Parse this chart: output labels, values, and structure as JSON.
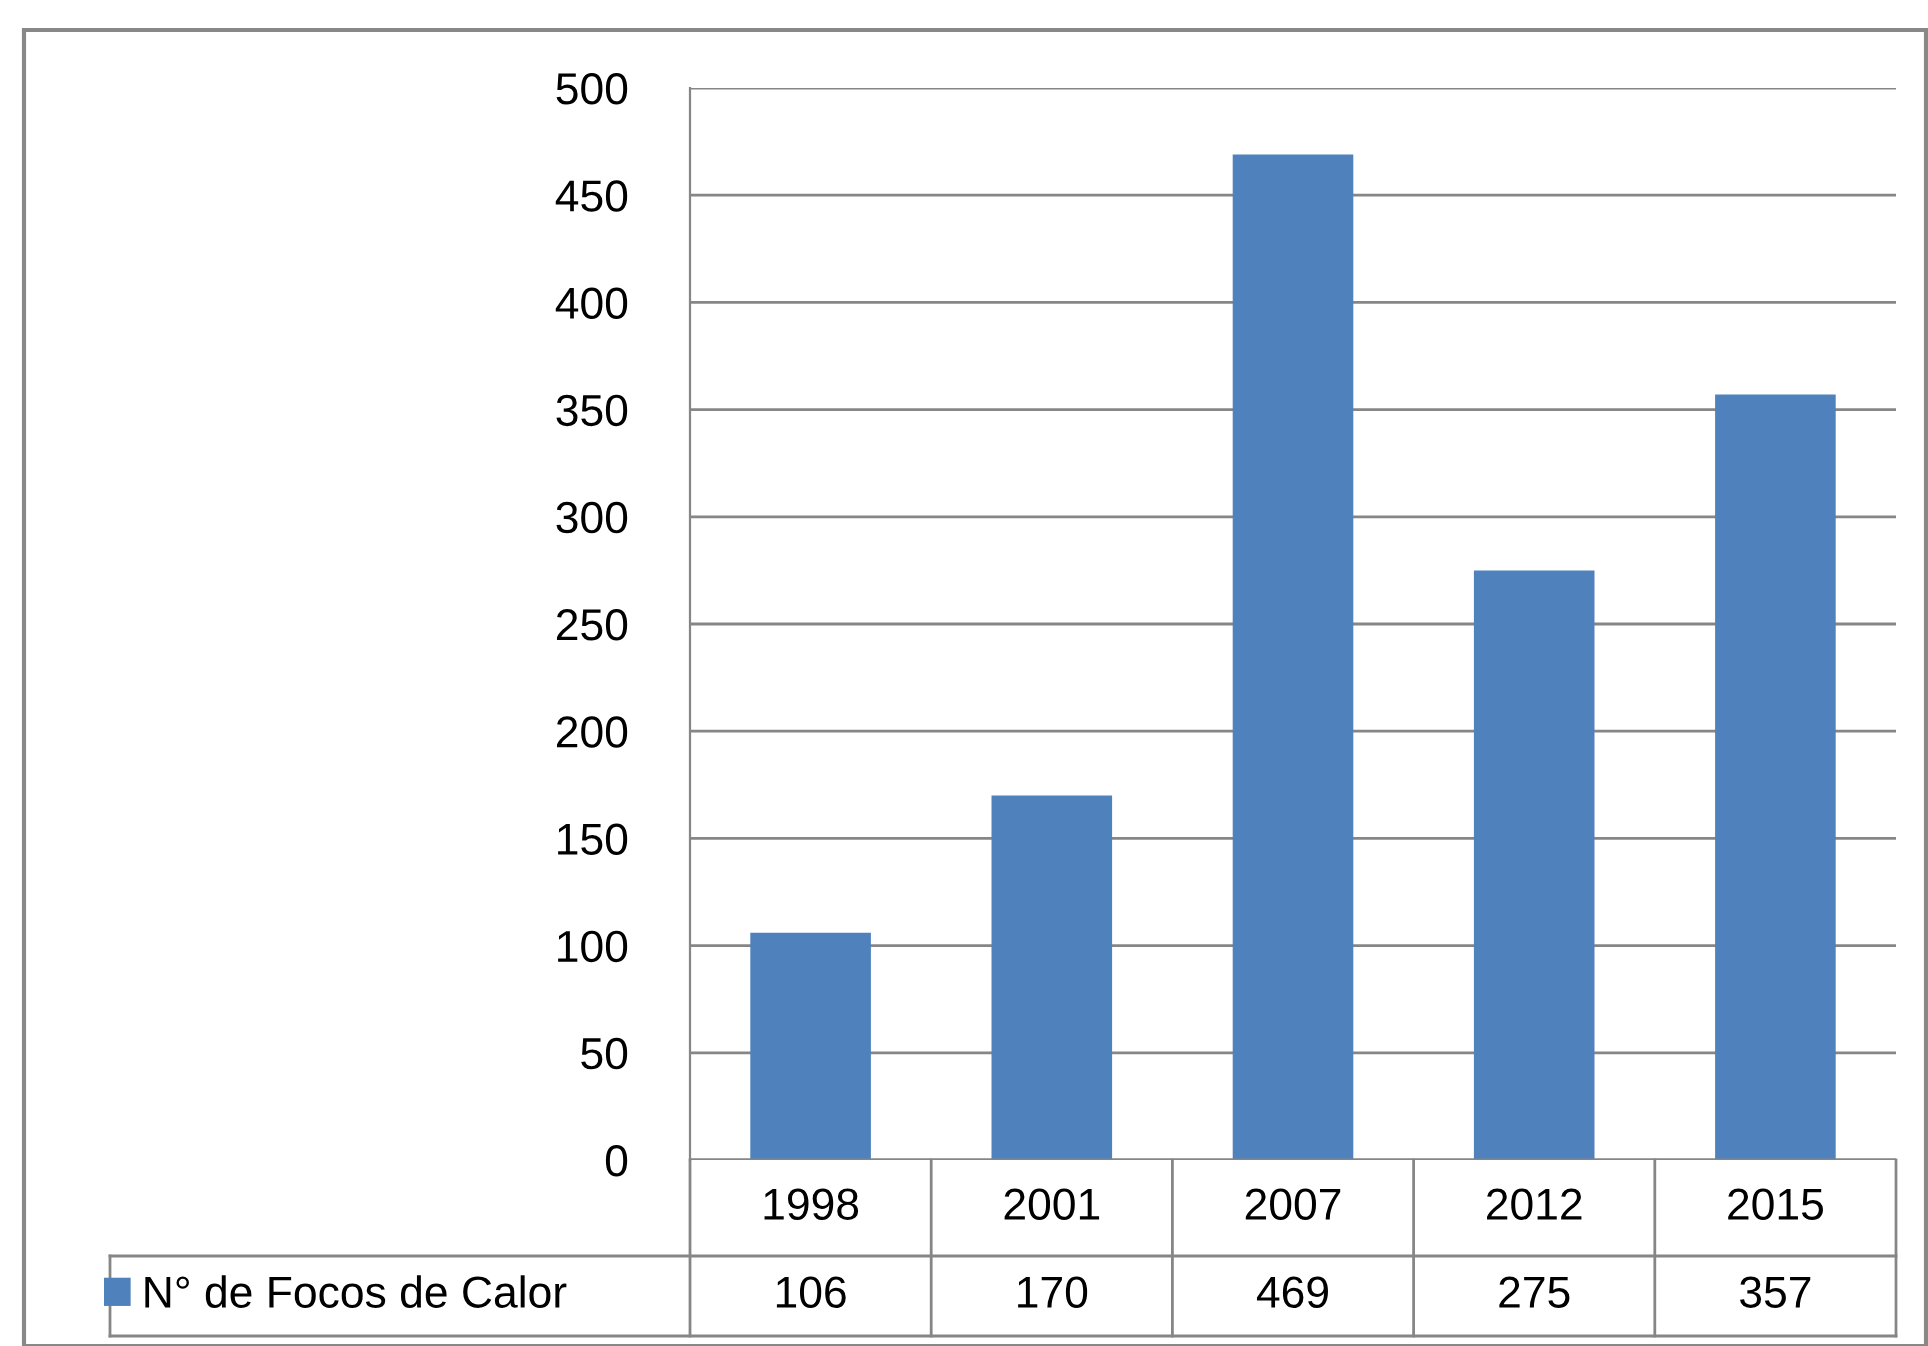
{
  "chart_data": {
    "type": "bar",
    "categories": [
      "1998",
      "2001",
      "2007",
      "2012",
      "2015"
    ],
    "series": [
      {
        "name": "N° de Focos de Calor",
        "color": "#4f81bd",
        "values": [
          106,
          170,
          469,
          275,
          357
        ]
      }
    ],
    "ylim": [
      0,
      500
    ],
    "yticks": [
      0,
      50,
      100,
      150,
      200,
      250,
      300,
      350,
      400,
      450,
      500
    ],
    "grid": "y",
    "legend": "bottom",
    "data_labels": true
  }
}
